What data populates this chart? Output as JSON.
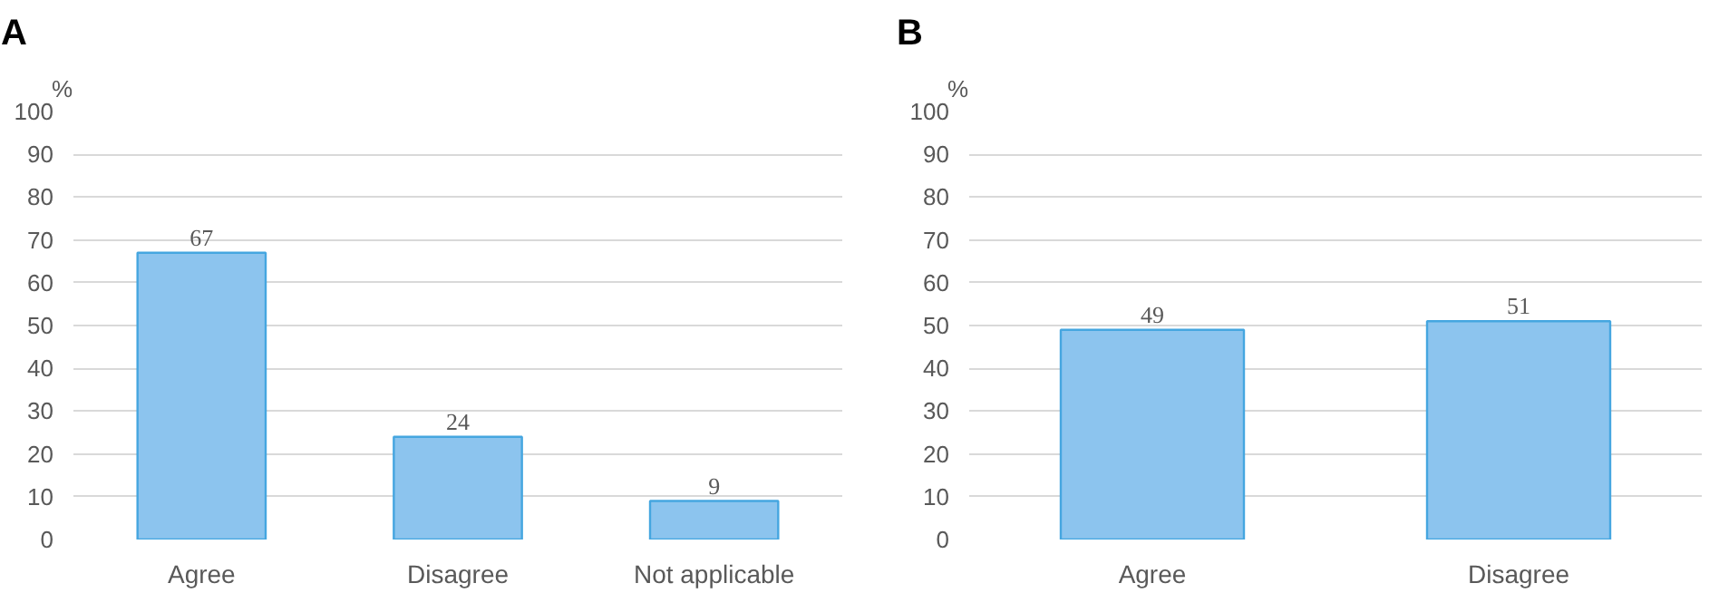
{
  "chart_data": [
    {
      "type": "bar",
      "title": "A",
      "ylabel": "%",
      "categories": [
        "Agree",
        "Disagree",
        "Not applicable"
      ],
      "values": [
        67,
        24,
        9
      ],
      "color": "#8cc4ee",
      "ylim": [
        0,
        100
      ],
      "yticks": [
        0,
        10,
        20,
        30,
        40,
        50,
        60,
        70,
        80,
        90,
        100
      ],
      "grid": "y",
      "data_labels": true
    },
    {
      "type": "bar",
      "title": "B",
      "ylabel": "%",
      "categories": [
        "Agree",
        "Disagree"
      ],
      "values": [
        49,
        51
      ],
      "color": "#8cc4ee",
      "ylim": [
        0,
        100
      ],
      "yticks": [
        0,
        10,
        20,
        30,
        40,
        50,
        60,
        70,
        80,
        90,
        100
      ],
      "grid": "y",
      "data_labels": true
    }
  ]
}
